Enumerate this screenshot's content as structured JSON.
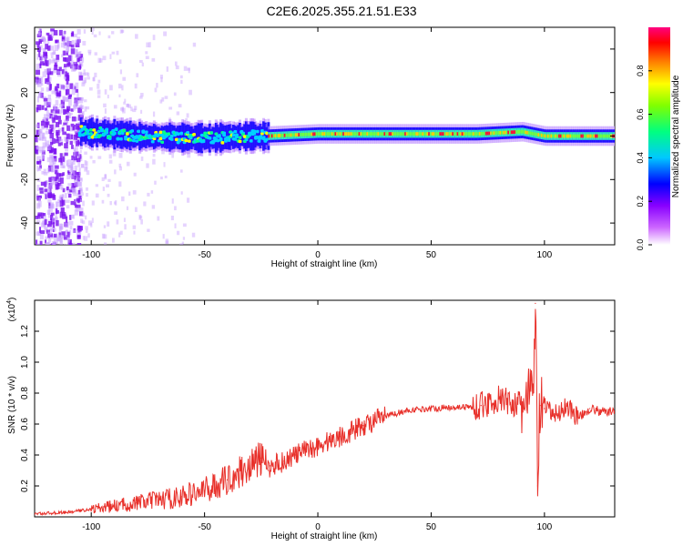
{
  "page": {
    "title": "C2E6.2025.355.21.51.E33"
  },
  "chart_data": [
    {
      "id": "spectrogram",
      "type": "heatmap",
      "xlabel": "Height of straight line (km)",
      "ylabel": "Frequency (Hz)",
      "xlim": [
        -125,
        131
      ],
      "ylim": [
        -50,
        50
      ],
      "x_ticks": [
        -100,
        -50,
        0,
        50,
        100
      ],
      "y_ticks": [
        -40,
        -20,
        0,
        20,
        40
      ],
      "colorbar": {
        "label": "Normalized spectral amplitude",
        "range": [
          0,
          1
        ],
        "ticks": [
          "0.0",
          "0.2",
          "0.4",
          "0.6",
          "0.8"
        ],
        "colormap": [
          "#e8d8ff",
          "#8800ff",
          "#0000ff",
          "#00c8ff",
          "#00ff80",
          "#80ff00",
          "#ffff00",
          "#ff8000",
          "#ff0000",
          "#ff0080"
        ]
      },
      "ridge": {
        "description_units": "Hz",
        "center_x": [
          -125,
          -105,
          -80,
          -50,
          -30,
          -22,
          0,
          50,
          70,
          90,
          100,
          131
        ],
        "center_y": [
          0,
          2,
          0,
          -1,
          0,
          0,
          1,
          1,
          1,
          2,
          0,
          0
        ],
        "noise_region_x": [
          -125,
          -105
        ],
        "sparse_region_x": [
          -105,
          -55
        ]
      }
    },
    {
      "id": "snr",
      "type": "line",
      "xlabel": "Height of straight line (km)",
      "ylabel": "SNR (10 * v/v)",
      "y_multiplier": "(x10",
      "y_multiplier_exp": "4",
      "y_multiplier_close": ")",
      "xlim": [
        -125,
        131
      ],
      "ylim": [
        0,
        1.4
      ],
      "x_ticks": [
        -100,
        -50,
        0,
        50,
        100
      ],
      "y_ticks": [
        "0.2",
        "0.4",
        "0.6",
        "0.8",
        "1.0",
        "1.2"
      ],
      "color": "#e8302a",
      "series": [
        {
          "x": [
            -125,
            -110,
            -100,
            -90,
            -80,
            -70,
            -60,
            -50,
            -40,
            -30,
            -25,
            -22,
            -21,
            -15,
            -10,
            0,
            10,
            20,
            30,
            40,
            50,
            60,
            68,
            72,
            80,
            85,
            90,
            95,
            96,
            97,
            98,
            100,
            105,
            110,
            115,
            120,
            125,
            131
          ],
          "y": [
            0.02,
            0.03,
            0.05,
            0.07,
            0.09,
            0.11,
            0.13,
            0.17,
            0.24,
            0.33,
            0.38,
            0.3,
            0.33,
            0.36,
            0.4,
            0.46,
            0.52,
            0.59,
            0.65,
            0.69,
            0.7,
            0.71,
            0.71,
            0.72,
            0.76,
            0.74,
            0.72,
            0.8,
            1.38,
            0.2,
            0.72,
            0.7,
            0.66,
            0.72,
            0.64,
            0.7,
            0.68,
            0.68
          ]
        }
      ]
    }
  ]
}
